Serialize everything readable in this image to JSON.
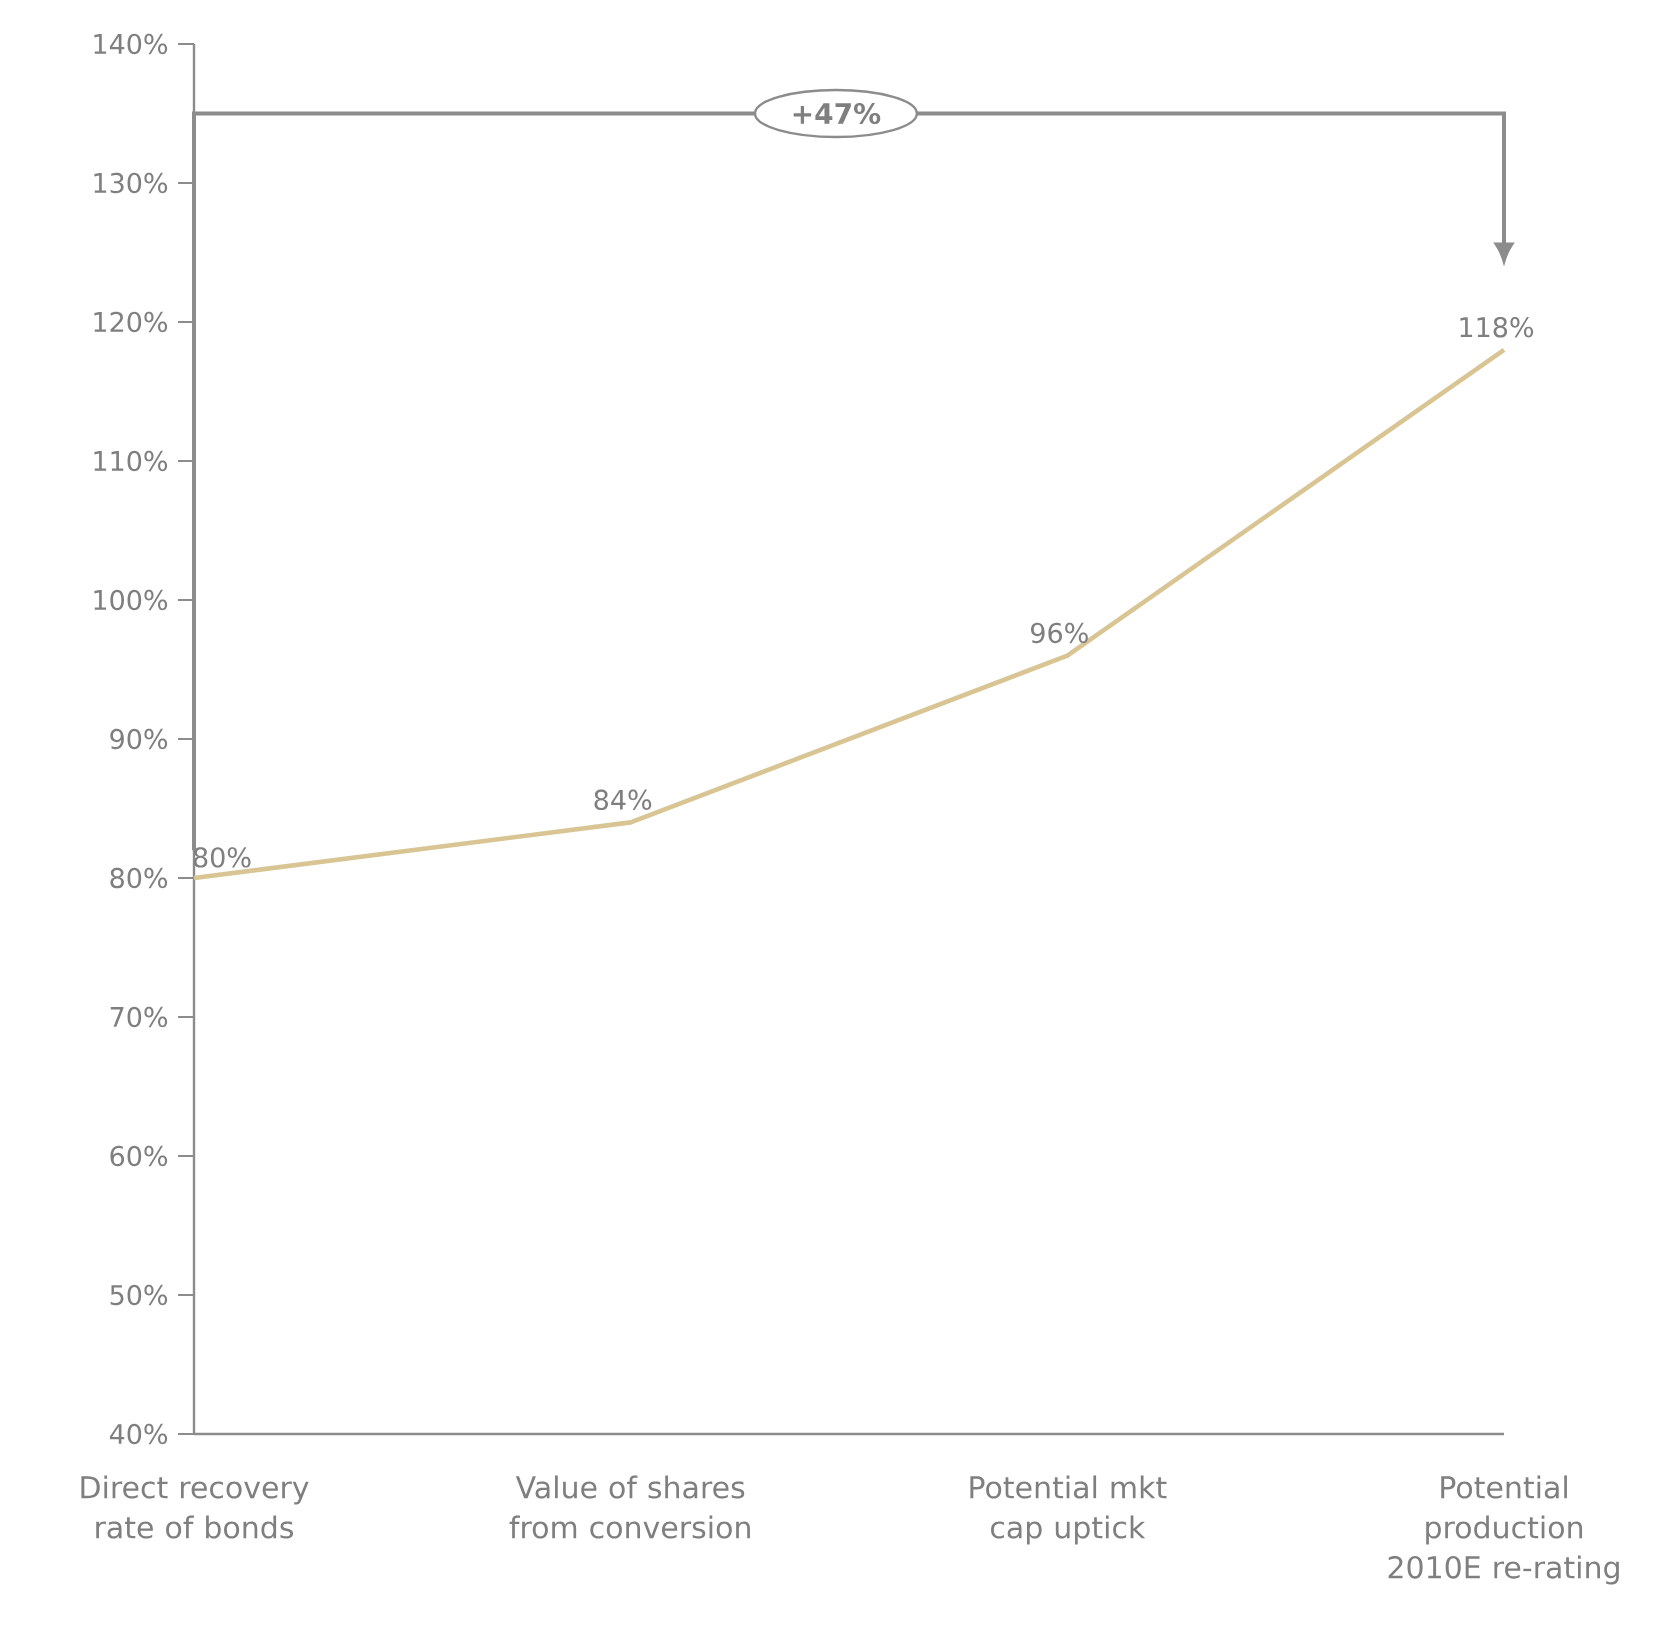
{
  "chart_data": {
    "type": "line",
    "categories": [
      "Direct recovery rate of bonds",
      "Value of shares from conversion",
      "Potential mkt cap uptick",
      "Potential production 2010E re-rating"
    ],
    "values": [
      80,
      84,
      96,
      118
    ],
    "color": "#d8c593",
    "data_labels": true,
    "value_labels": [
      "80%",
      "84%",
      "96%",
      "118%"
    ],
    "ylim": [
      40,
      140
    ],
    "yticks": [
      {
        "value": 40,
        "label": "40%"
      },
      {
        "value": 50,
        "label": "50%"
      },
      {
        "value": 60,
        "label": "60%"
      },
      {
        "value": 70,
        "label": "70%"
      },
      {
        "value": 80,
        "label": "80%"
      },
      {
        "value": 90,
        "label": "90%"
      },
      {
        "value": 100,
        "label": "100%"
      },
      {
        "value": 110,
        "label": "110%"
      },
      {
        "value": 120,
        "label": "120%"
      },
      {
        "value": 130,
        "label": "130%"
      },
      {
        "value": 140,
        "label": "140%"
      }
    ],
    "annotations": [
      "+47%"
    ],
    "grid": false,
    "marker": "none",
    "line_style": "solid"
  }
}
